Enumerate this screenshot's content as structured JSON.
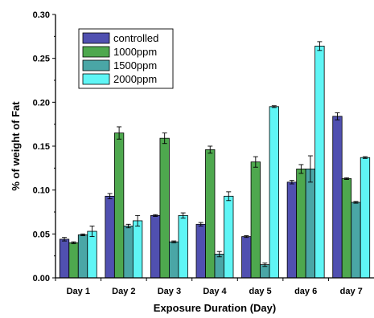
{
  "chart_data": {
    "type": "bar",
    "title": "",
    "xlabel": "Exposure Duration (Day)",
    "ylabel": "% of weight of Fat",
    "ylim": [
      0,
      0.3
    ],
    "yticks": [
      "0.00",
      "0.05",
      "0.10",
      "0.15",
      "0.20",
      "0.25",
      "0.30"
    ],
    "categories": [
      "Day 1",
      "Day 2",
      "Day 3",
      "Day 4",
      "day 5",
      "day 6",
      "day 7"
    ],
    "legend_position": "top-left",
    "grid": false,
    "series": [
      {
        "name": "controlled",
        "color": "#5050b0",
        "values": [
          0.044,
          0.093,
          0.071,
          0.061,
          0.047,
          0.109,
          0.184
        ],
        "errors": [
          0.002,
          0.003,
          0.001,
          0.002,
          0.001,
          0.002,
          0.004
        ]
      },
      {
        "name": "1000ppm",
        "color": "#4ea84e",
        "values": [
          0.04,
          0.165,
          0.159,
          0.146,
          0.132,
          0.124,
          0.113
        ],
        "errors": [
          0.001,
          0.007,
          0.006,
          0.004,
          0.006,
          0.005,
          0.001
        ]
      },
      {
        "name": "1500ppm",
        "color": "#4aa6a6",
        "values": [
          0.049,
          0.059,
          0.041,
          0.027,
          0.015,
          0.124,
          0.086
        ],
        "errors": [
          0.001,
          0.002,
          0.001,
          0.003,
          0.002,
          0.015,
          0.001
        ]
      },
      {
        "name": "2000ppm",
        "color": "#5ff5f5",
        "values": [
          0.053,
          0.065,
          0.071,
          0.093,
          0.195,
          0.264,
          0.137
        ],
        "errors": [
          0.006,
          0.006,
          0.003,
          0.005,
          0.001,
          0.005,
          0.001
        ]
      }
    ]
  }
}
